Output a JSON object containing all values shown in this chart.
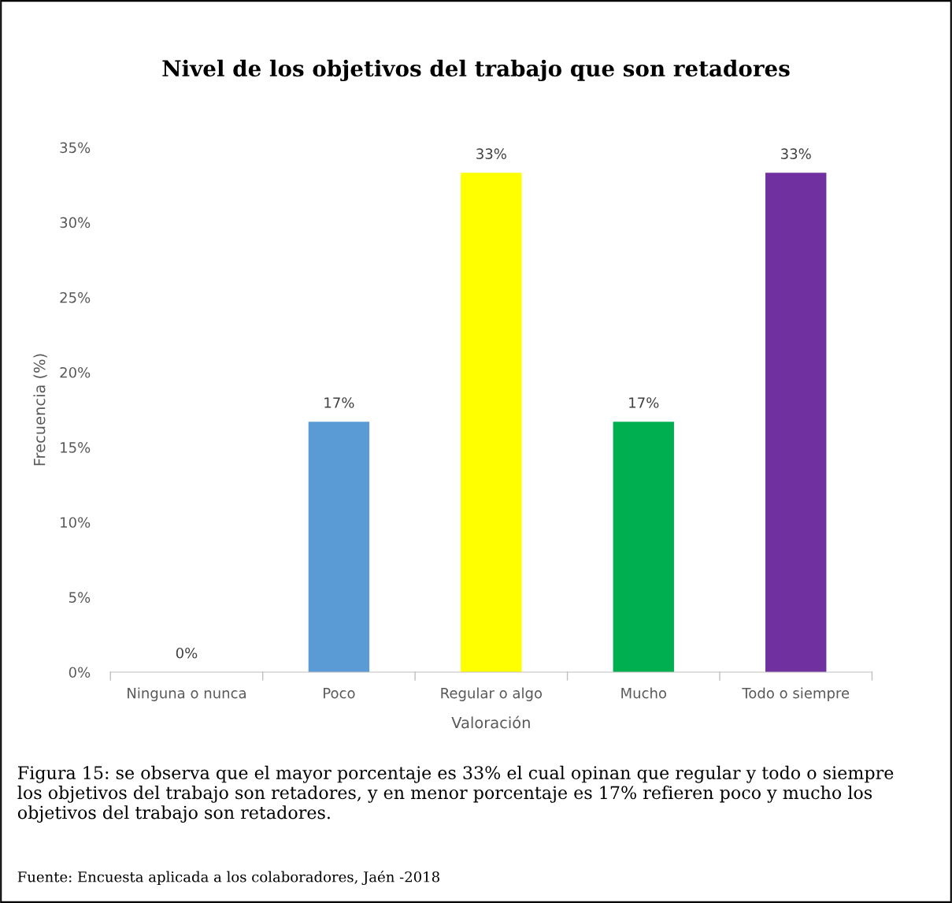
{
  "chart_data": {
    "type": "bar",
    "title": "Nivel de los objetivos del trabajo que son retadores",
    "xlabel": "Valoración",
    "ylabel": "Frecuencia (%)",
    "categories": [
      "Ninguna o nunca",
      "Poco",
      "Regular o algo",
      "Mucho",
      "Todo o siempre"
    ],
    "values": [
      0,
      16.7,
      33.3,
      16.7,
      33.3
    ],
    "colors": [
      "#a5a5a5",
      "#5b9bd5",
      "#ffff00",
      "#00b050",
      "#7030a0"
    ],
    "value_labels": [
      "0%",
      "17%",
      "33%",
      "17%",
      "33%"
    ],
    "ylim": [
      0,
      35
    ],
    "yticks": [
      {
        "value": 0,
        "label": "0%"
      },
      {
        "value": 5,
        "label": "5%"
      },
      {
        "value": 10,
        "label": "10%"
      },
      {
        "value": 15,
        "label": "15%"
      },
      {
        "value": 20,
        "label": "20%"
      },
      {
        "value": 25,
        "label": "25%"
      },
      {
        "value": 30,
        "label": "30%"
      },
      {
        "value": 35,
        "label": "35%"
      }
    ],
    "grid": false,
    "legend": false,
    "annotations": [
      "Figura 15: se observa que el mayor porcentaje es 33% el cual opinan que regular y todo o siempre los objetivos del trabajo son retadores, y en menor porcentaje es 17% refieren poco y mucho los objetivos del trabajo son retadores.",
      "Fuente: Encuesta aplicada a los colaboradores, Jaén -2018"
    ]
  }
}
